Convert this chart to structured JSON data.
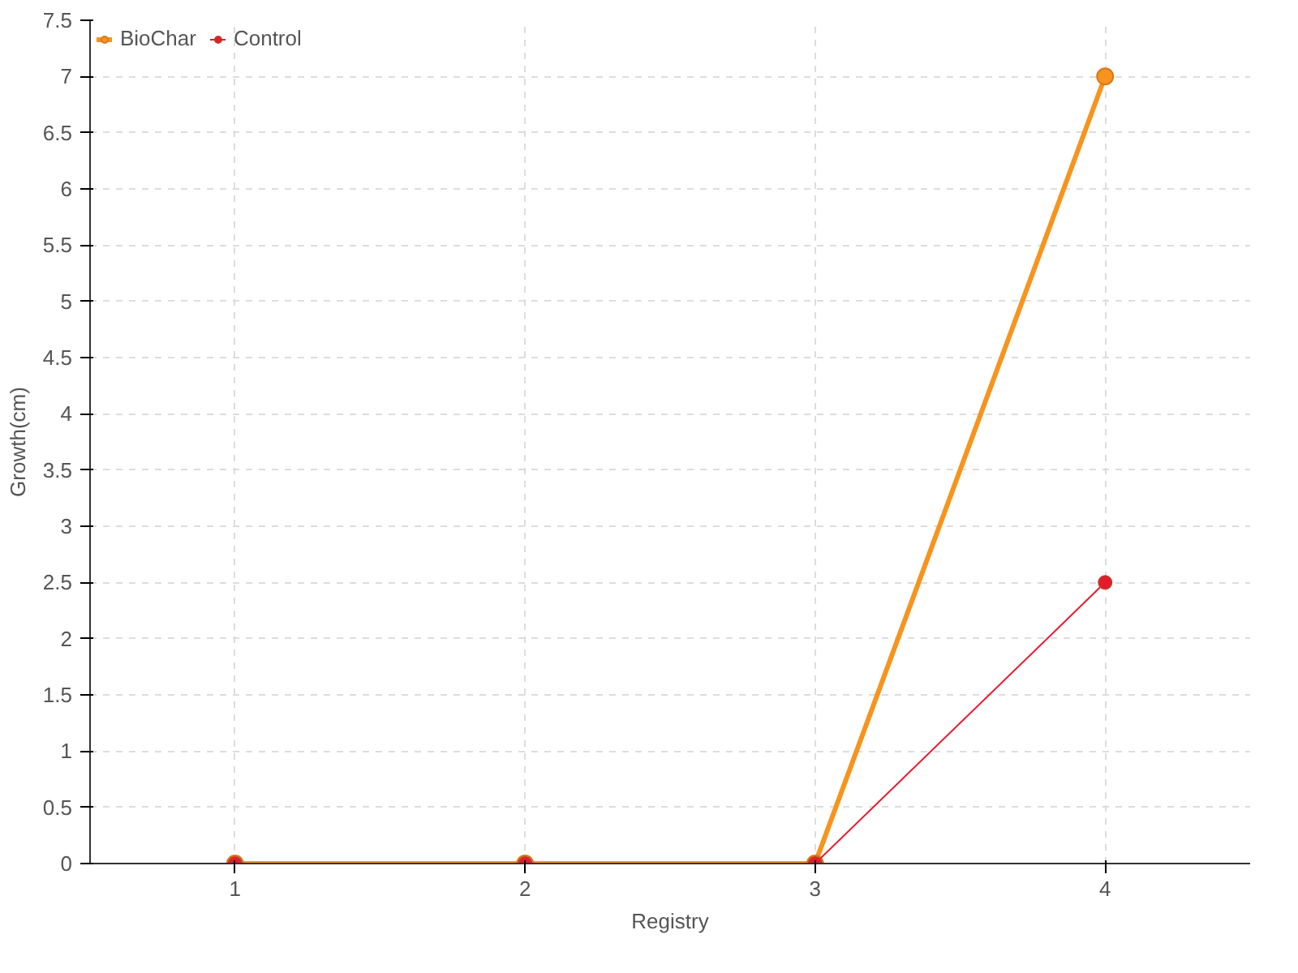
{
  "chart_data": {
    "type": "line",
    "xlabel": "Registry",
    "ylabel": "Growth(cm)",
    "x": [
      1,
      2,
      3,
      4
    ],
    "series": [
      {
        "name": "BioChar",
        "color": "#f7941d",
        "values": [
          0,
          0,
          0,
          7
        ]
      },
      {
        "name": "Control",
        "color": "#e8192c",
        "values": [
          0,
          0,
          0,
          2.5
        ]
      }
    ],
    "xlim": [
      0.5,
      4.5
    ],
    "xticks": [
      1,
      2,
      3,
      4
    ],
    "ylim": [
      0,
      7.5
    ],
    "yticks": [
      0,
      0.5,
      1,
      1.5,
      2,
      2.5,
      3,
      3.5,
      4,
      4.5,
      5,
      5.5,
      6,
      6.5,
      7,
      7.5
    ],
    "grid": true,
    "legend": "top left",
    "marker": "circle",
    "line_style": "solid"
  }
}
